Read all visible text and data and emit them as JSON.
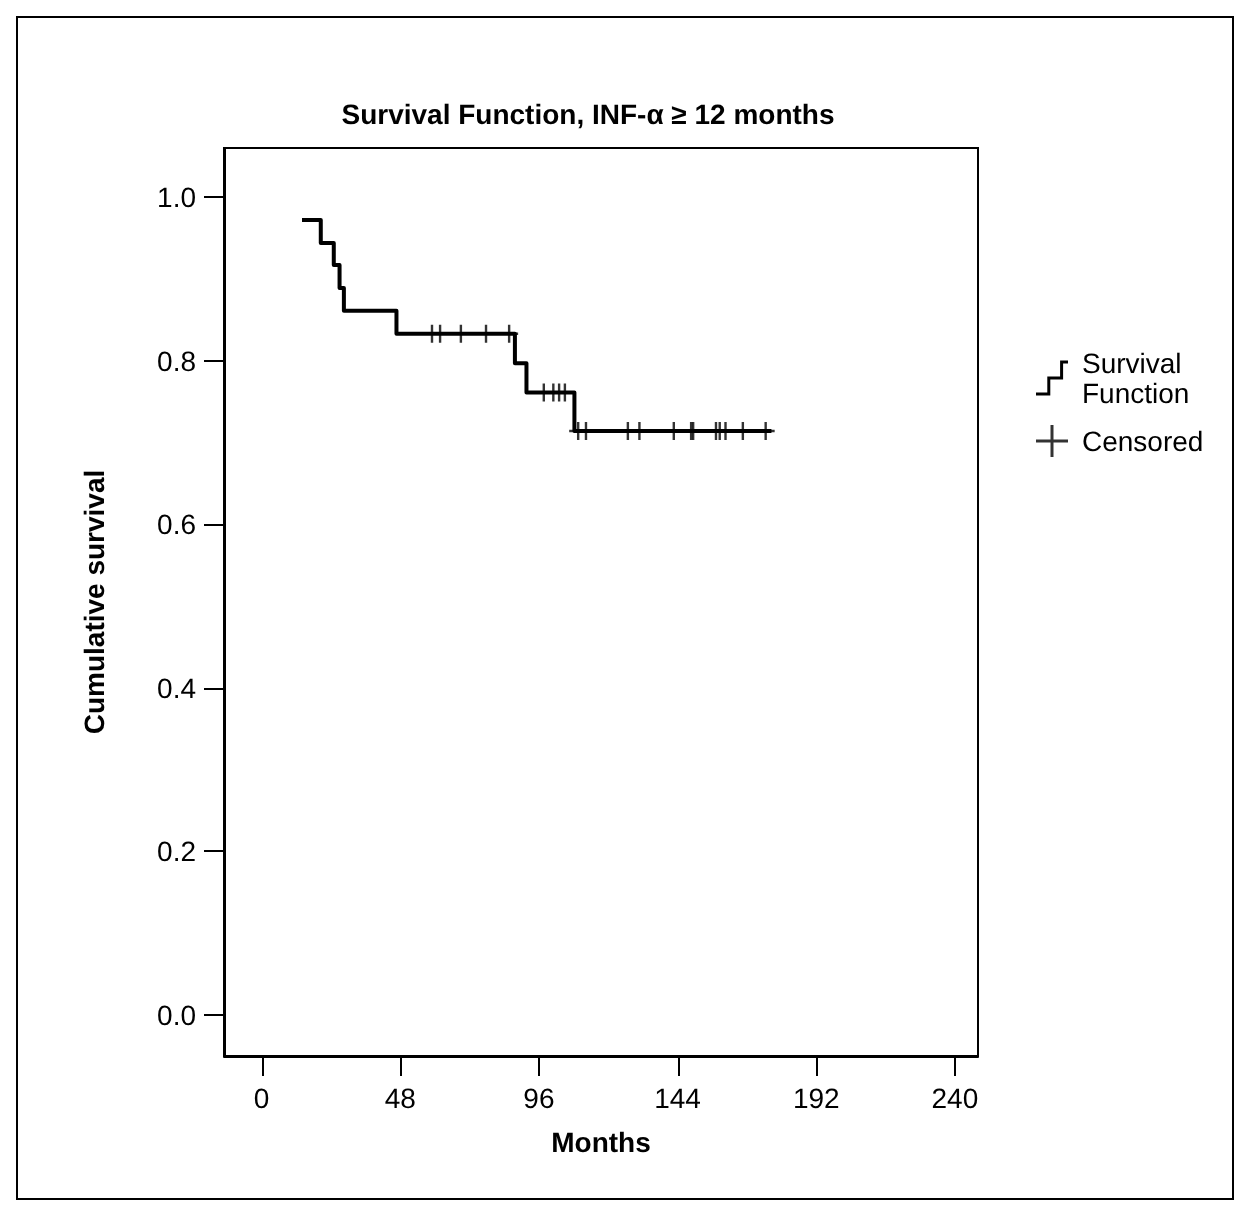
{
  "chart_data": {
    "type": "step",
    "title": "Survival Function, INF-α ≥ 12 months",
    "xlabel": "Months",
    "ylabel": "Cumulative survival",
    "xlim": [
      -13,
      248
    ],
    "ylim": [
      -0.05,
      1.06
    ],
    "xticks": [
      0,
      48,
      96,
      144,
      192,
      240
    ],
    "yticks": [
      {
        "value": 0,
        "label": "0.0"
      },
      {
        "value": 0.2,
        "label": "0.2"
      },
      {
        "value": 0.4,
        "label": "0.4"
      },
      {
        "value": 0.6,
        "label": "0.6"
      },
      {
        "value": 0.8,
        "label": "0.8"
      },
      {
        "value": 1,
        "label": "1.0"
      }
    ],
    "grid": false,
    "legend": "right",
    "series": [
      {
        "name": "Survival Function",
        "color": "#000000",
        "marker": "none",
        "x": [
          14,
          20.5,
          25,
          27,
          28.5,
          46.7,
          87.7,
          91.7,
          108.3,
          176.5
        ],
        "values": [
          0.972,
          0.944,
          0.917,
          0.889,
          0.861,
          0.833,
          0.797,
          0.761,
          0.714,
          0.714
        ]
      },
      {
        "name": "Censored",
        "type": "scatter",
        "color": "#000000",
        "marker": "cross",
        "x": [
          59,
          61.8,
          69,
          77.7,
          85.7,
          97.7,
          101,
          103,
          105,
          109.6,
          112.3,
          126.8,
          130.8,
          142.7,
          148.7,
          149.4,
          157.3,
          158.6,
          160.6,
          166.6,
          174.5
        ],
        "values": [
          0.833,
          0.833,
          0.833,
          0.833,
          0.833,
          0.761,
          0.761,
          0.761,
          0.761,
          0.714,
          0.714,
          0.714,
          0.714,
          0.714,
          0.714,
          0.714,
          0.714,
          0.714,
          0.714,
          0.714,
          0.714
        ]
      }
    ]
  }
}
